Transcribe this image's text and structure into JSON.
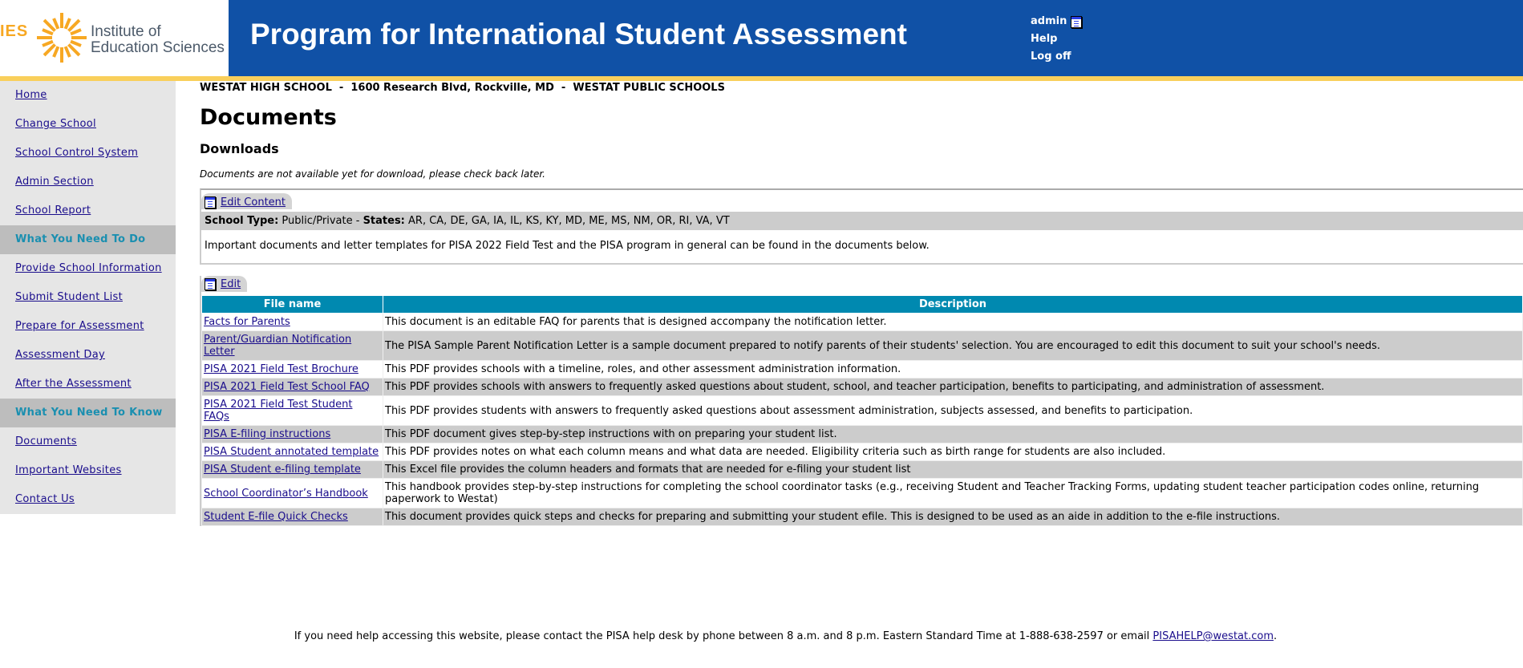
{
  "header": {
    "logo_abbr": "IES",
    "logo_line1": "Institute of",
    "logo_line2": "Education Sciences",
    "title": "Program for International Student Assessment",
    "user": "admin",
    "help": "Help",
    "logoff": "Log off",
    "colors": {
      "banner": "#1051a6",
      "accent": "#f9cf5b"
    }
  },
  "sidebar": {
    "items": [
      {
        "label": "Home",
        "type": "link"
      },
      {
        "label": "Change School",
        "type": "link"
      },
      {
        "label": "School Control System",
        "type": "link"
      },
      {
        "label": "Admin Section",
        "type": "link"
      },
      {
        "label": "School Report",
        "type": "link"
      },
      {
        "label": "What You Need To Do",
        "type": "section"
      },
      {
        "label": "Provide School Information",
        "type": "link"
      },
      {
        "label": "Submit Student List",
        "type": "link"
      },
      {
        "label": "Prepare for Assessment",
        "type": "link"
      },
      {
        "label": "Assessment Day",
        "type": "link"
      },
      {
        "label": "After the Assessment",
        "type": "link"
      },
      {
        "label": "What You Need To Know",
        "type": "section"
      },
      {
        "label": "Documents",
        "type": "link"
      },
      {
        "label": "Important Websites",
        "type": "link"
      },
      {
        "label": "Contact Us",
        "type": "link"
      }
    ]
  },
  "main": {
    "school_line": "WESTAT HIGH SCHOOL  -  1600 Research Blvd, Rockville, MD  -  WESTAT PUBLIC SCHOOLS",
    "page_title": "Documents",
    "subtitle": "Downloads",
    "note": "Documents are not available yet for download, please check back later.",
    "content_box": {
      "edit_label": "Edit Content",
      "school_type_label": "School Type:",
      "school_type": " Public/Private - ",
      "states_label": "States:",
      "states": " AR, CA, DE, GA, IA, IL, KS, KY, MD, ME, MS, NM, OR, RI, VA, VT",
      "text": "Important documents and letter templates for PISA 2022 Field Test and the PISA program in general can be found in the documents below."
    },
    "table": {
      "edit_label": "Edit",
      "columns": [
        "File name",
        "Description"
      ],
      "rows": [
        {
          "file": " Facts for Parents",
          "desc": "This document is an editable FAQ for parents that is designed accompany the notification letter."
        },
        {
          "file": " Parent/Guardian Notification Letter",
          "desc": "The PISA Sample Parent Notification Letter is a sample document prepared to notify parents of their students' selection. You are encouraged to edit this document to suit your school's needs."
        },
        {
          "file": " PISA 2021 Field Test Brochure",
          "desc": "This PDF provides schools with a timeline, roles, and other assessment administration information."
        },
        {
          "file": " PISA 2021 Field Test School FAQ",
          "desc": "This PDF provides schools with answers to frequently asked questions about student, school, and teacher participation, benefits to participating, and administration of assessment."
        },
        {
          "file": " PISA 2021 Field Test Student FAQs",
          "desc": "This PDF provides students with answers to frequently asked questions about assessment administration, subjects assessed, and benefits to participation."
        },
        {
          "file": " PISA E-filing instructions",
          "desc": "This PDF document gives step-by-step instructions with on preparing your student list."
        },
        {
          "file": " PISA Student annotated template",
          "desc": "This PDF provides notes on what each column means and what data are needed. Eligibility criteria such as birth range for students are also included."
        },
        {
          "file": " PISA Student e-filing template",
          "desc": "This Excel file provides the column headers and formats that are needed for e-filing your student list"
        },
        {
          "file": " School Coordinator’s Handbook",
          "desc": "This handbook provides step-by-step instructions for completing the school coordinator tasks (e.g., receiving Student and Teacher Tracking Forms, updating student teacher participation codes online, returning paperwork to Westat)"
        },
        {
          "file": " Student E-file Quick Checks",
          "desc": "This document provides quick steps and checks for preparing and submitting your student efile. This is designed to be used as an aide in addition to the e-file instructions."
        }
      ]
    }
  },
  "footer": {
    "text": "If you need help accessing this website, please contact the PISA help desk by phone between 8 a.m. and 8 p.m. Eastern Standard Time at 1-888-638-2597 or email ",
    "email": "PISAHELP@westat.com",
    "end": "."
  }
}
